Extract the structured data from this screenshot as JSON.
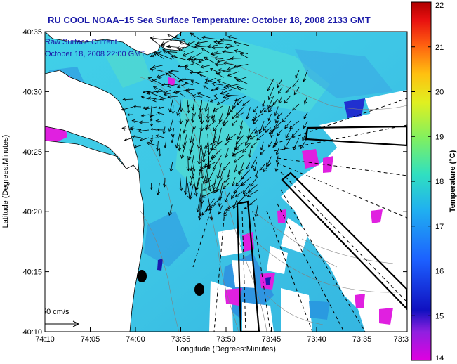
{
  "title": "RU COOL  NOAA–15  Sea Surface Temperature:  October 18, 2008 2133 GMT",
  "inset": {
    "line1": "Raw Surface Current",
    "line2": "October 18, 2008 22:00 GMT"
  },
  "scale_label": "50 cm/s",
  "axes": {
    "xlabel": "Longitude (Degrees:Minutes)",
    "ylabel": "Latitude (Degrees:Minutes)",
    "xticks": [
      "74:10",
      "74:05",
      "74:00",
      "73:55",
      "73:50",
      "73:45",
      "73:40",
      "73:35",
      "73:3"
    ],
    "yticks": [
      "40:35",
      "40:30",
      "40:25",
      "40:20",
      "40:15",
      "40:10"
    ]
  },
  "colorbar": {
    "label": "Temperature (°C)",
    "ticks": [
      "22",
      "21",
      "20",
      "19",
      "18",
      "17",
      "16",
      "15",
      "14"
    ],
    "min": 14,
    "max": 22
  },
  "colors": {
    "title": "#1a1aa8",
    "land": "#ffffff",
    "water_warm": "#39c8e6",
    "water_cool": "#2a8ce0",
    "cold_patch": "#e020e0"
  }
}
